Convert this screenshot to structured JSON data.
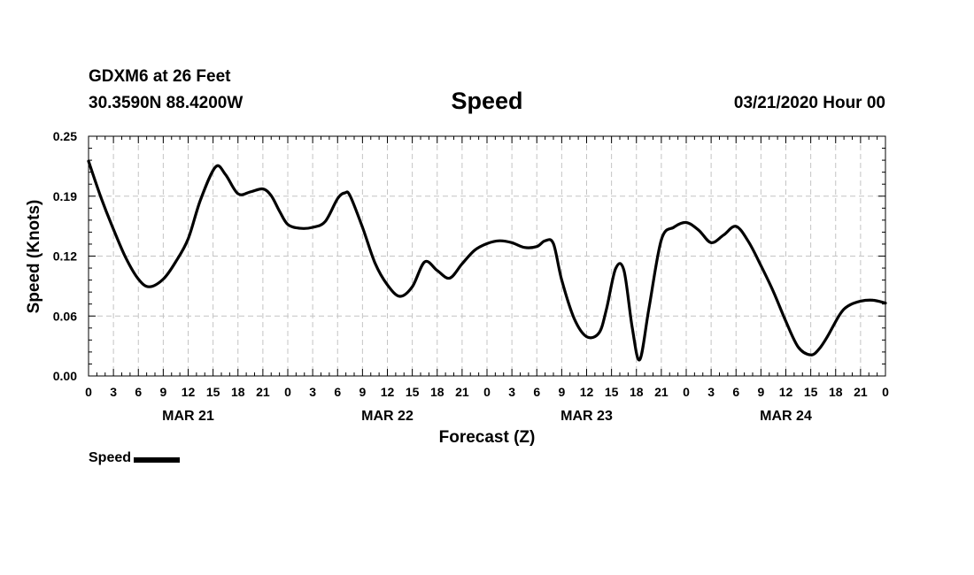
{
  "header": {
    "station": "GDXM6 at 26 Feet",
    "coords": "30.3590N 88.4200W",
    "title": "Speed",
    "datetime": "03/21/2020 Hour 00"
  },
  "legend": {
    "label": "Speed"
  },
  "chart_data": {
    "type": "line",
    "title": "Speed",
    "xlabel": "Forecast (Z)",
    "ylabel": "Speed (Knots)",
    "xlim": [
      0,
      96
    ],
    "ylim": [
      0,
      0.25
    ],
    "yticks": [
      "0.00",
      "0.06",
      "0.12",
      "0.19",
      "0.25"
    ],
    "xtick_labels": [
      "0",
      "3",
      "6",
      "9",
      "12",
      "15",
      "18",
      "21",
      "0",
      "3",
      "6",
      "9",
      "12",
      "15",
      "18",
      "21",
      "0",
      "3",
      "6",
      "9",
      "12",
      "15",
      "18",
      "21",
      "0",
      "3",
      "6",
      "9",
      "12",
      "15",
      "18",
      "21",
      "0"
    ],
    "day_labels": [
      {
        "label": "MAR 21",
        "hour": 12
      },
      {
        "label": "MAR 22",
        "hour": 36
      },
      {
        "label": "MAR 23",
        "hour": 60
      },
      {
        "label": "MAR 24",
        "hour": 84
      }
    ],
    "grid": true,
    "series": [
      {
        "name": "Speed",
        "x": [
          0,
          1.5,
          3,
          4.5,
          6,
          7.3,
          9,
          10.5,
          12,
          13.5,
          15.3,
          16.5,
          18,
          19.5,
          21,
          22,
          23,
          24,
          25.5,
          27,
          28.5,
          30,
          30.9,
          31.5,
          33,
          34.5,
          36,
          37.5,
          39,
          40.5,
          42,
          43.5,
          45,
          46.5,
          48,
          49.5,
          51,
          52.5,
          54,
          55,
          56,
          57,
          58.5,
          60,
          61.5,
          62.4,
          63.5,
          64.5,
          65.5,
          66.4,
          67.5,
          69,
          70.5,
          72,
          73.5,
          75,
          76.5,
          78,
          79.5,
          81,
          82.5,
          84,
          85.5,
          87,
          88,
          89,
          90.5,
          91.5,
          93,
          94.5,
          96
        ],
        "values": [
          0.224,
          0.186,
          0.153,
          0.123,
          0.101,
          0.093,
          0.101,
          0.119,
          0.143,
          0.184,
          0.218,
          0.21,
          0.19,
          0.192,
          0.195,
          0.188,
          0.172,
          0.158,
          0.154,
          0.155,
          0.161,
          0.185,
          0.191,
          0.188,
          0.155,
          0.118,
          0.095,
          0.083,
          0.093,
          0.119,
          0.11,
          0.102,
          0.117,
          0.131,
          0.138,
          0.141,
          0.139,
          0.134,
          0.135,
          0.141,
          0.138,
          0.1,
          0.06,
          0.041,
          0.045,
          0.07,
          0.112,
          0.11,
          0.05,
          0.017,
          0.07,
          0.142,
          0.155,
          0.16,
          0.152,
          0.139,
          0.147,
          0.156,
          0.14,
          0.115,
          0.088,
          0.057,
          0.03,
          0.022,
          0.028,
          0.041,
          0.064,
          0.073,
          0.078,
          0.079,
          0.076
        ]
      }
    ]
  }
}
